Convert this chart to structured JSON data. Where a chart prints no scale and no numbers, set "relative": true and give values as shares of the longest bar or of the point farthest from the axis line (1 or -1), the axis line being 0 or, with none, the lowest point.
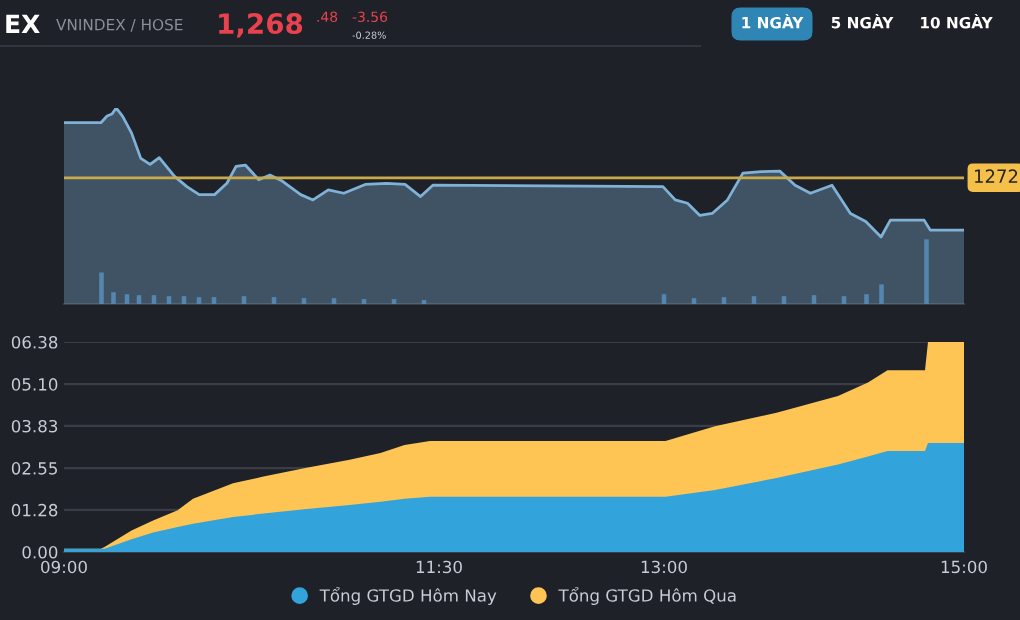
{
  "chart_data": [
    {
      "type": "area",
      "relative": true,
      "xlim": [
        9,
        15
      ],
      "grid": false,
      "legend": false,
      "annotations": [
        "EX",
        "VNINDEX / HOSE",
        "1,268",
        ".48",
        "-3.56",
        "-0.28%",
        "1 NGÀY",
        "5 NGÀY",
        "10 NGÀY",
        "1272"
      ],
      "ref_lines": [
        {
          "axis": "y",
          "value": 0.644,
          "color": "#c9a94a",
          "line_style": "solid"
        }
      ],
      "series": [
        {
          "type": "area",
          "color": "#7fb2d6",
          "x": [
            9.0,
            9.246,
            9.287,
            9.32,
            9.348,
            9.39,
            9.45,
            9.512,
            9.574,
            9.635,
            9.737,
            9.819,
            9.901,
            10.004,
            10.086,
            10.147,
            10.209,
            10.299,
            10.373,
            10.455,
            10.578,
            10.66,
            10.762,
            10.865,
            11.008,
            11.151,
            11.274,
            11.377,
            11.459,
            12.993,
            13.075,
            13.157,
            13.239,
            13.321,
            13.423,
            13.526,
            13.649,
            13.772,
            13.874,
            13.976,
            14.12,
            14.243,
            14.345,
            14.447,
            14.509,
            14.734,
            14.775,
            15.0
          ],
          "values": [
            0.925,
            0.925,
            0.959,
            0.969,
            1.0,
            0.959,
            0.873,
            0.743,
            0.712,
            0.747,
            0.651,
            0.599,
            0.558,
            0.558,
            0.616,
            0.702,
            0.709,
            0.634,
            0.658,
            0.627,
            0.558,
            0.531,
            0.582,
            0.565,
            0.61,
            0.616,
            0.61,
            0.548,
            0.606,
            0.599,
            0.531,
            0.514,
            0.452,
            0.462,
            0.531,
            0.668,
            0.675,
            0.678,
            0.606,
            0.565,
            0.606,
            0.462,
            0.421,
            0.342,
            0.428,
            0.428,
            0.377,
            0.377
          ]
        },
        {
          "type": "bar",
          "color": "#3f6f9c",
          "x": [
            9.25,
            9.33,
            9.42,
            9.5,
            9.6,
            9.7,
            9.8,
            9.9,
            10.0,
            10.2,
            10.4,
            10.6,
            10.8,
            11.0,
            11.2,
            11.4,
            13.0,
            13.2,
            13.4,
            13.6,
            13.8,
            14.0,
            14.2,
            14.35,
            14.45,
            14.75
          ],
          "values": [
            0.161,
            0.06,
            0.05,
            0.045,
            0.045,
            0.04,
            0.04,
            0.035,
            0.035,
            0.04,
            0.035,
            0.03,
            0.03,
            0.025,
            0.025,
            0.02,
            0.05,
            0.03,
            0.035,
            0.04,
            0.04,
            0.045,
            0.04,
            0.05,
            0.1,
            0.33
          ]
        }
      ]
    },
    {
      "type": "area",
      "xlim": [
        9,
        15
      ],
      "ylim": [
        0,
        6.38
      ],
      "grid": "y",
      "legend": "bottom",
      "xticks": [
        {
          "value": 9,
          "label": "09:00"
        },
        {
          "value": 11.5,
          "label": "11:30"
        },
        {
          "value": 13,
          "label": "13:00"
        },
        {
          "value": 15,
          "label": "15:00"
        }
      ],
      "yticks": [
        {
          "value": 0,
          "label": "0.00"
        },
        {
          "value": 1.28,
          "label": "01.28"
        },
        {
          "value": 2.55,
          "label": "02.55"
        },
        {
          "value": 3.83,
          "label": "03.83"
        },
        {
          "value": 5.1,
          "label": "05.10"
        },
        {
          "value": 6.38,
          "label": "06.38"
        }
      ],
      "series": [
        {
          "name": "Tổng GTGD Hôm Nay",
          "color": "#33a3dc",
          "x": [
            9.0,
            9.246,
            9.27,
            9.45,
            9.594,
            9.758,
            9.86,
            10.127,
            10.33,
            10.618,
            10.904,
            11.11,
            11.27,
            11.44,
            13.01,
            13.34,
            13.75,
            14.16,
            14.36,
            14.49,
            14.74,
            14.76,
            15.0
          ],
          "values": [
            0.1,
            0.1,
            0.1,
            0.39,
            0.59,
            0.76,
            0.86,
            1.06,
            1.17,
            1.31,
            1.43,
            1.53,
            1.62,
            1.68,
            1.68,
            1.88,
            2.25,
            2.66,
            2.9,
            3.07,
            3.07,
            3.31,
            3.31
          ]
        },
        {
          "name": "Tổng GTGD Hôm Qua",
          "color": "#fec555",
          "x": [
            9.0,
            9.246,
            9.27,
            9.45,
            9.594,
            9.758,
            9.86,
            10.127,
            10.33,
            10.618,
            10.904,
            11.11,
            11.27,
            11.44,
            13.01,
            13.34,
            13.75,
            14.16,
            14.36,
            14.49,
            14.74,
            14.76,
            15.0
          ],
          "values": [
            0.1,
            0.1,
            0.15,
            0.65,
            0.96,
            1.27,
            1.62,
            2.09,
            2.29,
            2.56,
            2.8,
            3.01,
            3.25,
            3.37,
            3.37,
            3.82,
            4.23,
            4.74,
            5.15,
            5.52,
            5.52,
            6.38,
            6.38
          ]
        }
      ]
    }
  ]
}
